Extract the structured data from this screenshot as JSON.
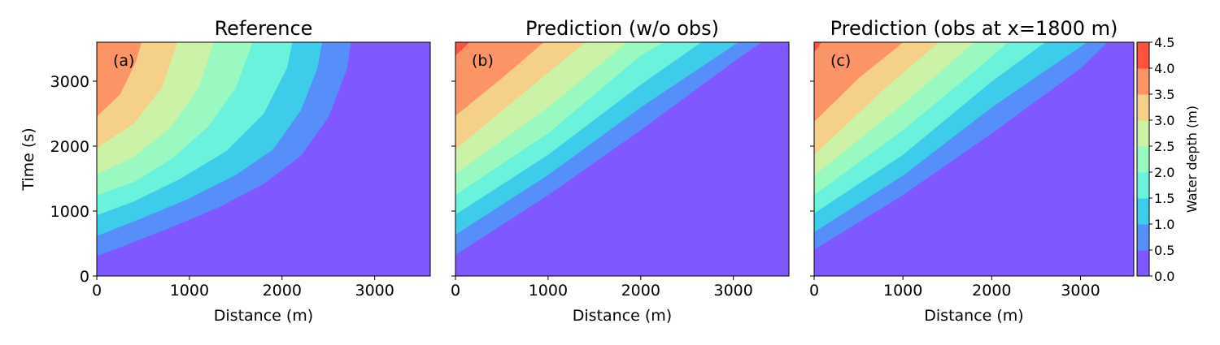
{
  "chart_data": {
    "type": "contourf",
    "colorbar": {
      "label": "Water depth (m)",
      "levels": [
        0.0,
        0.5,
        1.0,
        1.5,
        2.0,
        2.5,
        3.0,
        3.5,
        4.0,
        4.5
      ],
      "tick_labels": [
        "0.0",
        "0.5",
        "1.0",
        "1.5",
        "2.0",
        "2.5",
        "3.0",
        "3.5",
        "4.0",
        "4.5"
      ],
      "colors": [
        "#8058ff",
        "#568ffa",
        "#3dcdea",
        "#6af2dc",
        "#99f9c0",
        "#cbf2a6",
        "#f4d089",
        "#fc9465",
        "#ff5040"
      ]
    },
    "x_range": [
      0,
      3600
    ],
    "y_range": [
      0,
      3600
    ],
    "x_ticks": [
      0,
      1000,
      2000,
      3000
    ],
    "x_tick_labels": [
      "0",
      "1000",
      "2000",
      "3000"
    ],
    "y_ticks": [
      0,
      1000,
      2000,
      3000
    ],
    "y_tick_labels": [
      "0",
      "1000",
      "2000",
      "3000"
    ],
    "ylabel": "Time (s)",
    "panels": [
      {
        "title": "Reference",
        "label": "(a)",
        "xlabel": "Distance (m)",
        "contours": [
          {
            "level": 0.0,
            "points": [
              [
                0,
                310
              ],
              [
                300,
                470
              ],
              [
                800,
                750
              ],
              [
                1300,
                1050
              ],
              [
                1800,
                1420
              ],
              [
                2200,
                1850
              ],
              [
                2500,
                2450
              ],
              [
                2700,
                3200
              ],
              [
                2740,
                3600
              ]
            ]
          },
          {
            "level": 0.5,
            "points": [
              [
                0,
                620
              ],
              [
                500,
                900
              ],
              [
                1000,
                1200
              ],
              [
                1500,
                1560
              ],
              [
                1900,
                1950
              ],
              [
                2200,
                2550
              ],
              [
                2380,
                3200
              ],
              [
                2430,
                3600
              ]
            ]
          },
          {
            "level": 1.0,
            "points": [
              [
                0,
                940
              ],
              [
                400,
                1150
              ],
              [
                900,
                1500
              ],
              [
                1400,
                1930
              ],
              [
                1800,
                2500
              ],
              [
                2050,
                3200
              ],
              [
                2110,
                3600
              ]
            ]
          },
          {
            "level": 1.5,
            "points": [
              [
                0,
                1250
              ],
              [
                400,
                1450
              ],
              [
                800,
                1800
              ],
              [
                1200,
                2300
              ],
              [
                1500,
                2900
              ],
              [
                1680,
                3600
              ]
            ]
          },
          {
            "level": 2.0,
            "points": [
              [
                0,
                1570
              ],
              [
                400,
                1840
              ],
              [
                800,
                2300
              ],
              [
                1100,
                2900
              ],
              [
                1260,
                3600
              ]
            ]
          },
          {
            "level": 2.5,
            "points": [
              [
                0,
                1980
              ],
              [
                400,
                2350
              ],
              [
                700,
                2900
              ],
              [
                870,
                3600
              ]
            ]
          },
          {
            "level": 3.0,
            "points": [
              [
                0,
                2460
              ],
              [
                250,
                2800
              ],
              [
                420,
                3300
              ],
              [
                480,
                3600
              ]
            ]
          }
        ]
      },
      {
        "title": "Prediction (w/o obs)",
        "label": "(b)",
        "xlabel": "Distance (m)",
        "contours": [
          {
            "level": 0.0,
            "points": [
              [
                0,
                330
              ],
              [
                1000,
                1250
              ],
              [
                2000,
                2250
              ],
              [
                3000,
                3300
              ],
              [
                3300,
                3600
              ]
            ]
          },
          {
            "level": 0.5,
            "points": [
              [
                0,
                640
              ],
              [
                1000,
                1560
              ],
              [
                2000,
                2600
              ],
              [
                3050,
                3600
              ]
            ]
          },
          {
            "level": 1.0,
            "points": [
              [
                0,
                950
              ],
              [
                1000,
                1870
              ],
              [
                2000,
                2950
              ],
              [
                2650,
                3600
              ]
            ]
          },
          {
            "level": 1.5,
            "points": [
              [
                0,
                1250
              ],
              [
                1000,
                2200
              ],
              [
                2000,
                3400
              ],
              [
                2250,
                3600
              ]
            ]
          },
          {
            "level": 2.0,
            "points": [
              [
                0,
                1580
              ],
              [
                1000,
                2600
              ],
              [
                1850,
                3600
              ]
            ]
          },
          {
            "level": 2.5,
            "points": [
              [
                0,
                1960
              ],
              [
                800,
                2900
              ],
              [
                1400,
                3600
              ]
            ]
          },
          {
            "level": 3.0,
            "points": [
              [
                0,
                2470
              ],
              [
                500,
                3050
              ],
              [
                950,
                3600
              ]
            ]
          },
          {
            "level": 3.5,
            "points": [
              [
                0,
                3400
              ],
              [
                150,
                3600
              ]
            ]
          }
        ]
      },
      {
        "title": "Prediction (obs at x=1800 m)",
        "label": "(c)",
        "xlabel": "Distance (m)",
        "contours": [
          {
            "level": 0.0,
            "points": [
              [
                0,
                410
              ],
              [
                1000,
                1250
              ],
              [
                2000,
                2200
              ],
              [
                3000,
                3200
              ],
              [
                3300,
                3600
              ]
            ]
          },
          {
            "level": 0.5,
            "points": [
              [
                0,
                680
              ],
              [
                1000,
                1550
              ],
              [
                2000,
                2600
              ],
              [
                3070,
                3600
              ]
            ]
          },
          {
            "level": 1.0,
            "points": [
              [
                0,
                970
              ],
              [
                1000,
                1870
              ],
              [
                2000,
                3000
              ],
              [
                2600,
                3600
              ]
            ]
          },
          {
            "level": 1.5,
            "points": [
              [
                0,
                1250
              ],
              [
                1000,
                2250
              ],
              [
                1800,
                3150
              ],
              [
                2180,
                3600
              ]
            ]
          },
          {
            "level": 2.0,
            "points": [
              [
                0,
                1550
              ],
              [
                1000,
                2650
              ],
              [
                1800,
                3600
              ]
            ]
          },
          {
            "level": 2.5,
            "points": [
              [
                0,
                1870
              ],
              [
                800,
                2900
              ],
              [
                1400,
                3600
              ]
            ]
          },
          {
            "level": 3.0,
            "points": [
              [
                0,
                2380
              ],
              [
                500,
                3050
              ],
              [
                1000,
                3600
              ]
            ]
          },
          {
            "level": 3.5,
            "points": [
              [
                0,
                3450
              ],
              [
                80,
                3600
              ]
            ]
          }
        ]
      }
    ]
  }
}
